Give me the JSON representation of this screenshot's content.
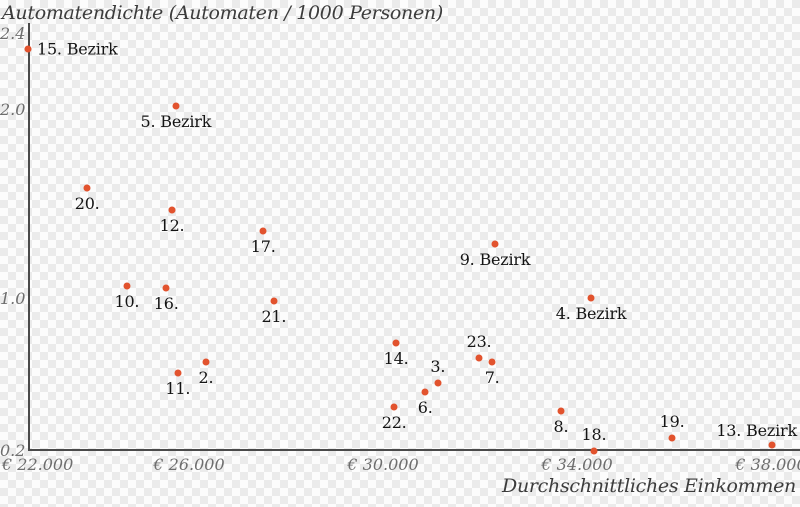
{
  "colors": {
    "point": "#e2532e",
    "axis_line": "#4a4a4a",
    "tick_label": "#6e6e6e",
    "point_label": "#141414",
    "title_text": "#3c3c3c",
    "checker_light": "#fcfcfc",
    "checker_dark": "#ebebeb"
  },
  "chart_data": {
    "type": "scatter",
    "title": "Automatendichte (Automaten / 1000 Personen)",
    "xlabel": "Durchschnittliches Einkommen",
    "ylabel": "Automatendichte (Automaten / 1000 Personen)",
    "grid": false,
    "legend": false,
    "xlim": [
      22700,
      38600
    ],
    "ylim": [
      0.2,
      2.45
    ],
    "x_ticks": [
      {
        "value": 22000,
        "label": "€ 22.000"
      },
      {
        "value": 26000,
        "label": "€ 26.000"
      },
      {
        "value": 30000,
        "label": "€ 30.000"
      },
      {
        "value": 34000,
        "label": "€ 34.000"
      },
      {
        "value": 38000,
        "label": "€ 38.000"
      }
    ],
    "y_ticks": [
      {
        "value": 2.4,
        "label": "2.4"
      },
      {
        "value": 2.0,
        "label": "2.0"
      },
      {
        "value": 1.0,
        "label": "1.0"
      },
      {
        "value": 0.2,
        "label": "0.2"
      }
    ],
    "points": [
      {
        "label": "15. Bezirk",
        "income": 22680,
        "density": 2.32,
        "anchor": "right"
      },
      {
        "label": "5. Bezirk",
        "income": 25730,
        "density": 2.02,
        "anchor": "below"
      },
      {
        "label": "20.",
        "income": 23900,
        "density": 1.59,
        "anchor": "below"
      },
      {
        "label": "12.",
        "income": 25650,
        "density": 1.47,
        "anchor": "below"
      },
      {
        "label": "17.",
        "income": 27530,
        "density": 1.36,
        "anchor": "below"
      },
      {
        "label": "9. Bezirk",
        "income": 32310,
        "density": 1.29,
        "anchor": "below"
      },
      {
        "label": "10.",
        "income": 24720,
        "density": 1.07,
        "anchor": "below"
      },
      {
        "label": "16.",
        "income": 25530,
        "density": 1.06,
        "anchor": "below"
      },
      {
        "label": "4. Bezirk",
        "income": 34290,
        "density": 1.01,
        "anchor": "below"
      },
      {
        "label": "21.",
        "income": 27750,
        "density": 0.99,
        "anchor": "below"
      },
      {
        "label": "14.",
        "income": 30270,
        "density": 0.77,
        "anchor": "below"
      },
      {
        "label": "23.",
        "income": 31980,
        "density": 0.69,
        "anchor": "above"
      },
      {
        "label": "7.",
        "income": 32250,
        "density": 0.67,
        "anchor": "below"
      },
      {
        "label": "2.",
        "income": 26350,
        "density": 0.67,
        "anchor": "below"
      },
      {
        "label": "11.",
        "income": 25770,
        "density": 0.61,
        "anchor": "below"
      },
      {
        "label": "3.",
        "income": 31130,
        "density": 0.56,
        "anchor": "above"
      },
      {
        "label": "6.",
        "income": 30870,
        "density": 0.51,
        "anchor": "below"
      },
      {
        "label": "22.",
        "income": 30230,
        "density": 0.43,
        "anchor": "below"
      },
      {
        "label": "8.",
        "income": 33670,
        "density": 0.41,
        "anchor": "below"
      },
      {
        "label": "19.",
        "income": 35960,
        "density": 0.27,
        "anchor": "above"
      },
      {
        "label": "13. Bezirk",
        "income": 38020,
        "density": 0.23,
        "anchor": "above-right"
      },
      {
        "label": "18.",
        "income": 34350,
        "density": 0.2,
        "anchor": "above"
      }
    ]
  }
}
